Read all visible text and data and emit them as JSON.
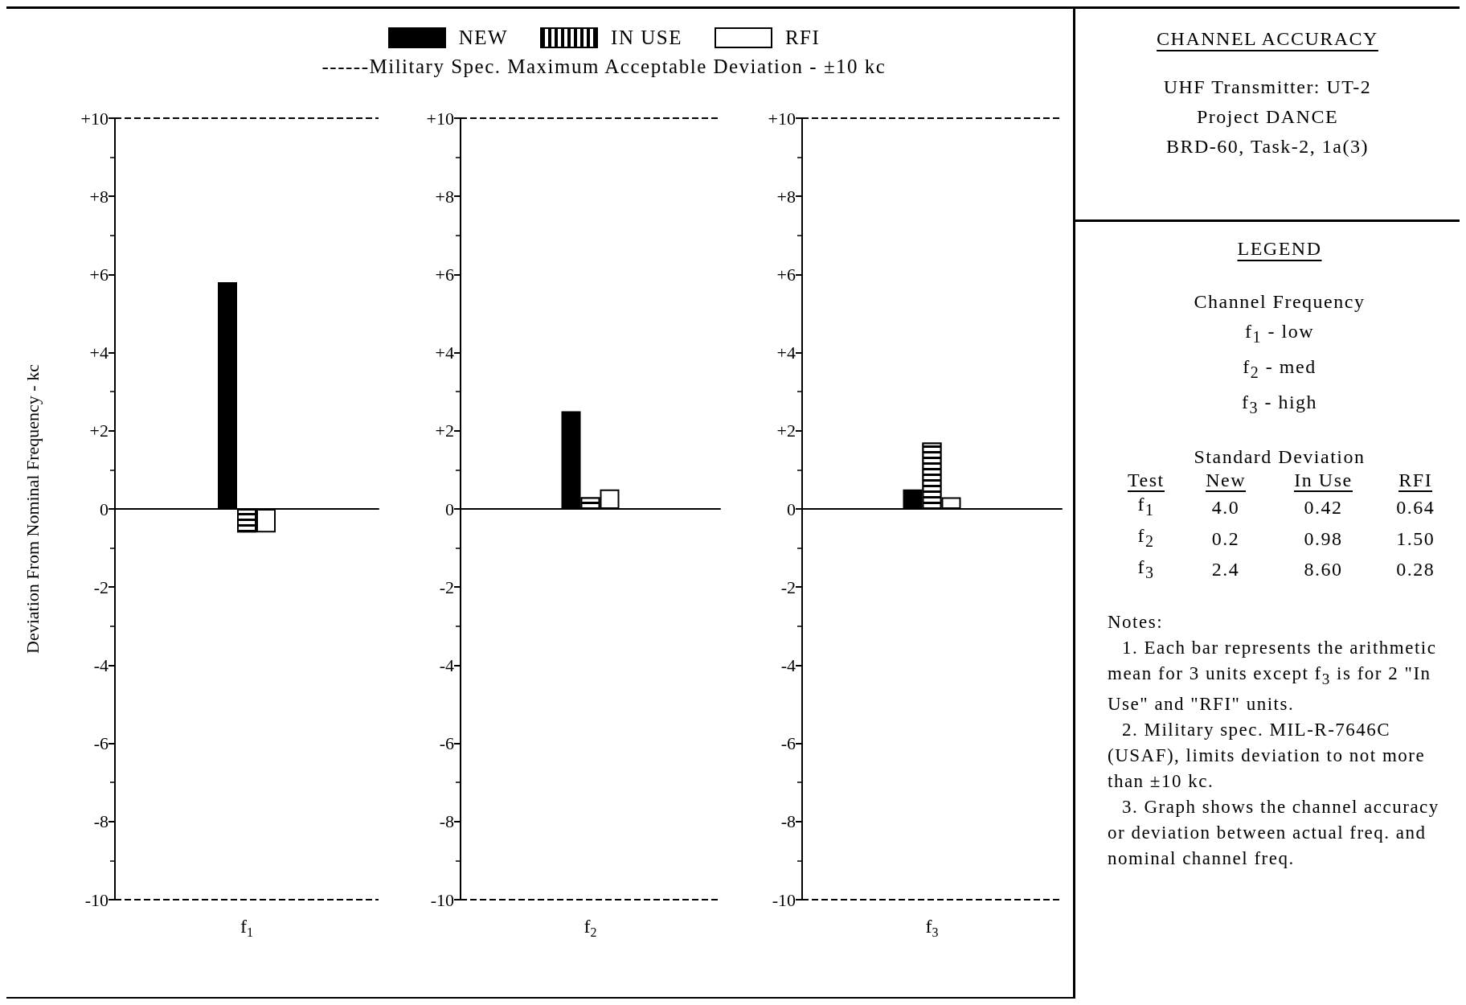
{
  "chart_data": [
    {
      "type": "bar",
      "categories": [
        "f$_{1}$"
      ],
      "ylabel": "Deviation From Nominal Frequency - kc",
      "legend": "top",
      "annotations": [
        "------Military Spec. Maximum Acceptable Deviation - ±10 kc"
      ],
      "series": [
        {
          "name": "NEW",
          "color": "#000000",
          "values": [
            5.8
          ]
        },
        {
          "name": "IN USE",
          "color": "#000000",
          "values": [
            -0.6
          ]
        },
        {
          "name": "RFI",
          "color": "#ffffff",
          "values": [
            -0.6
          ]
        }
      ],
      "ylim": [
        -10,
        10
      ],
      "yticks": [
        -10,
        -8,
        -6,
        -4,
        -2,
        0,
        {
          "value": 2,
          "label": "+2"
        },
        {
          "value": 4,
          "label": "+4"
        },
        {
          "value": 6,
          "label": "+6"
        },
        {
          "value": 8,
          "label": "+8"
        },
        {
          "value": 10,
          "label": "+10"
        }
      ],
      "ref_lines": [
        {
          "axis": "y",
          "value": 10,
          "color": "#000000",
          "line_style": "dashed"
        },
        {
          "axis": "y",
          "value": -10,
          "color": "#000000",
          "line_style": "dashed"
        }
      ]
    },
    {
      "type": "bar",
      "categories": [
        "f$_{2}$"
      ],
      "series": [
        {
          "color": "#000000",
          "values": [
            2.5
          ]
        },
        {
          "color": "#000000",
          "values": [
            0.3
          ]
        },
        {
          "color": "#ffffff",
          "values": [
            0.5
          ]
        }
      ],
      "ylim": [
        -10,
        10
      ],
      "yticks": [
        -10,
        -8,
        -6,
        -4,
        -2,
        0,
        {
          "value": 2,
          "label": "+2"
        },
        {
          "value": 4,
          "label": "+4"
        },
        {
          "value": 6,
          "label": "+6"
        },
        {
          "value": 8,
          "label": "+8"
        },
        {
          "value": 10,
          "label": "+10"
        }
      ],
      "ref_lines": [
        {
          "axis": "y",
          "value": 10,
          "color": "#000000",
          "line_style": "dashed"
        },
        {
          "axis": "y",
          "value": -10,
          "color": "#000000",
          "line_style": "dashed"
        }
      ]
    },
    {
      "type": "bar",
      "categories": [
        "f$_{3}$"
      ],
      "series": [
        {
          "color": "#000000",
          "values": [
            0.5
          ]
        },
        {
          "color": "#000000",
          "values": [
            1.7
          ]
        },
        {
          "color": "#ffffff",
          "values": [
            0.3
          ]
        }
      ],
      "ylim": [
        -10,
        10
      ],
      "yticks": [
        -10,
        -8,
        -6,
        -4,
        -2,
        0,
        {
          "value": 2,
          "label": "+2"
        },
        {
          "value": 4,
          "label": "+4"
        },
        {
          "value": 6,
          "label": "+6"
        },
        {
          "value": 8,
          "label": "+8"
        },
        {
          "value": 10,
          "label": "+10"
        }
      ],
      "ref_lines": [
        {
          "axis": "y",
          "value": 10,
          "color": "#000000",
          "line_style": "dashed"
        },
        {
          "axis": "y",
          "value": -10,
          "color": "#000000",
          "line_style": "dashed"
        }
      ]
    },
    {
      "type": "other",
      "title": "CHANNEL ACCURACY",
      "subtitle": "UHF Transmitter: UT-2\nProject DANCE\nBRD-60, Task-2, 1a(3)",
      "legend_title": "LEGEND",
      "annotations": [
        "Channel Frequency",
        "f$_{1}$ - low",
        "f$_{2}$ - med",
        "f$_{3}$ - high",
        "Notes:",
        "1. Each bar represents the arithmetic mean for 3 units except f$_{3}$ is for 2 \"In Use\" and \"RFI\" units.",
        "2. Military spec. MIL-R-7646C (USAF), limits deviation to not more than ±10 kc.",
        "3. Graph shows the channel accuracy or deviation between actual freq. and nominal channel freq."
      ],
      "xlabel": "Standard Deviation",
      "categories": [
        "Test",
        "New",
        "In Use",
        "RFI"
      ],
      "y_categories": [
        "f$_{1}$",
        "f$_{2}$",
        "f$_{3}$"
      ],
      "cell_labels": [
        [
          "4.0",
          "0.42",
          "0.64"
        ],
        [
          "0.2",
          "0.98",
          "1.50"
        ],
        [
          "2.4",
          "8.60",
          "0.28"
        ]
      ]
    }
  ]
}
